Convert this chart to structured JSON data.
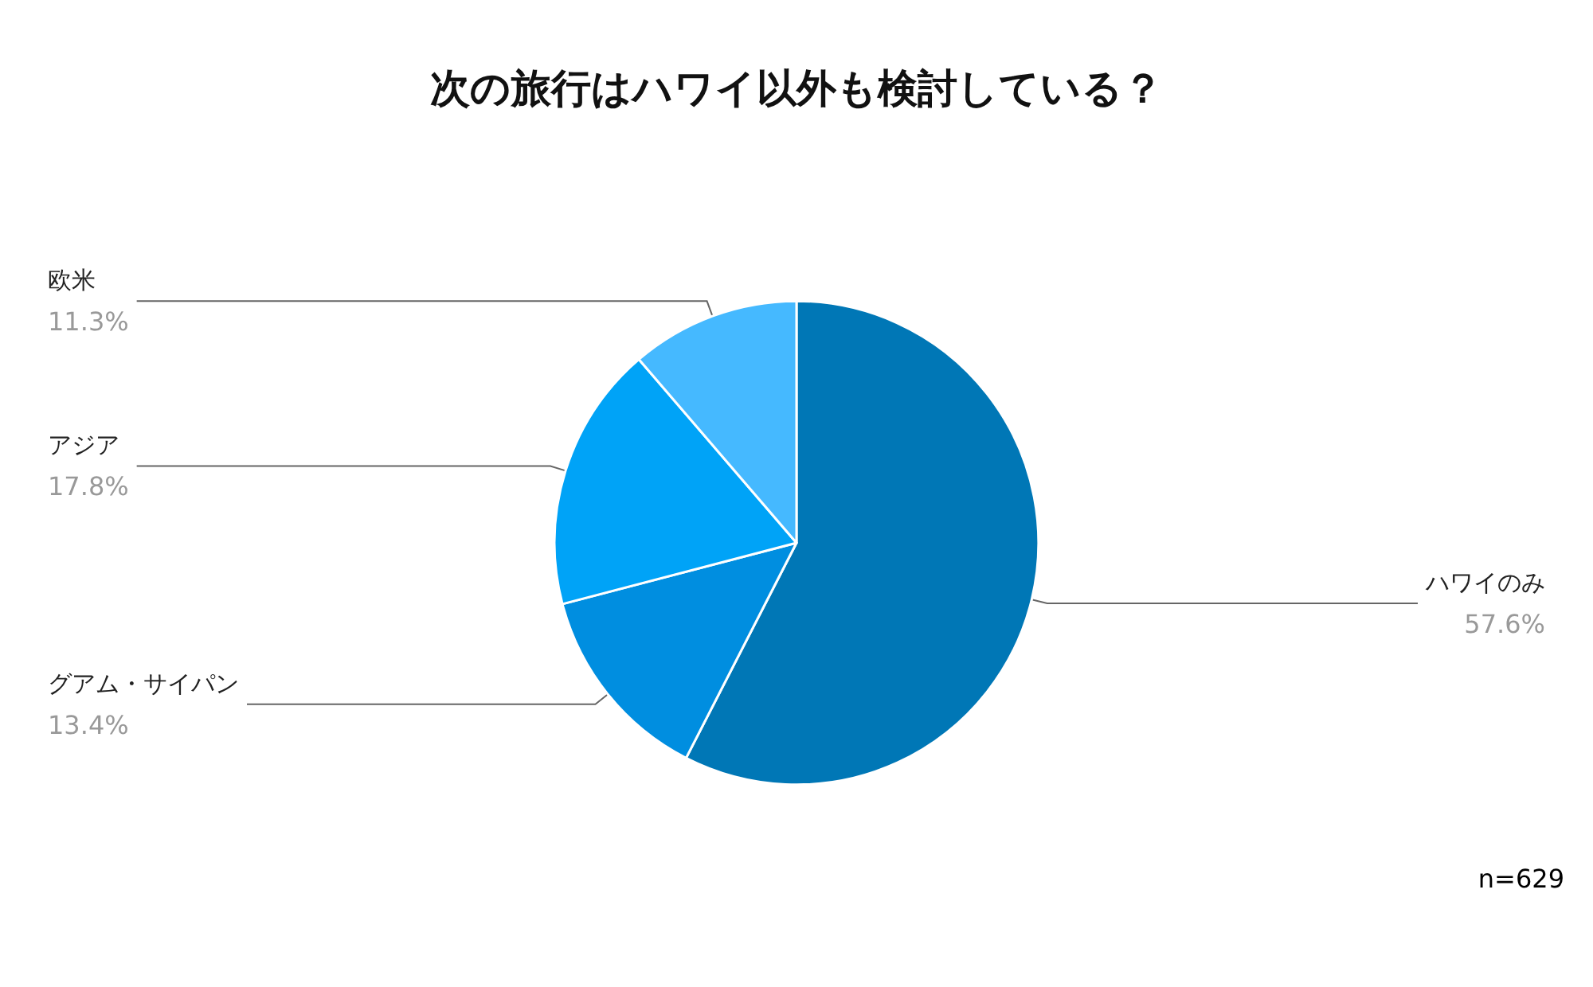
{
  "chart_data": {
    "type": "pie",
    "title": "次の旅行はハワイ以外も検討している？",
    "categories": [
      "ハワイのみ",
      "グアム・サイパン",
      "アジア",
      "欧米"
    ],
    "values": [
      57.6,
      13.4,
      17.8,
      11.3
    ],
    "value_labels": [
      "57.6%",
      "13.4%",
      "17.8%",
      "11.3%"
    ],
    "colors": [
      "#0077b6",
      "#008ee0",
      "#00a3f7",
      "#45b9ff"
    ],
    "annotations": [
      "n=629"
    ],
    "legend": false
  }
}
